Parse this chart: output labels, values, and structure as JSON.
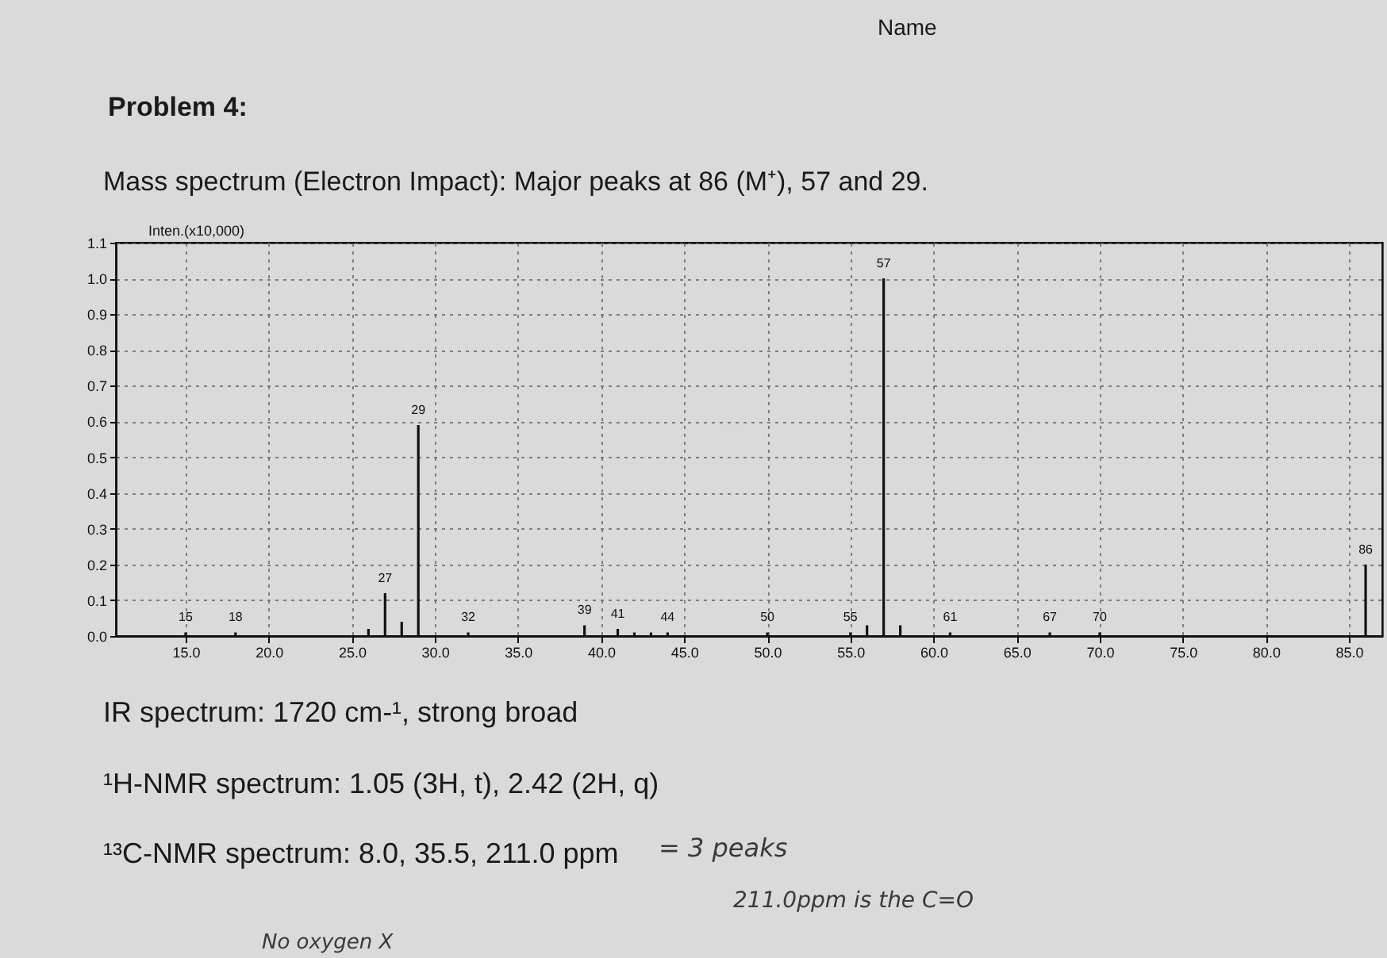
{
  "chart_data": {
    "type": "bar",
    "title": "Mass spectrum (Electron Impact): Major peaks at 86 (M⁺), 57 and 29.",
    "ylabel": "Inten.(x10,000)",
    "x": [
      15,
      18,
      26,
      27,
      28,
      29,
      32,
      39,
      41,
      42,
      43,
      44,
      50,
      55,
      56,
      57,
      58,
      61,
      67,
      70,
      86
    ],
    "values": [
      0.01,
      0.01,
      0.02,
      0.12,
      0.04,
      0.59,
      0.01,
      0.03,
      0.02,
      0.01,
      0.01,
      0.01,
      0.01,
      0.01,
      0.03,
      1.0,
      0.03,
      0.01,
      0.01,
      0.01,
      0.2
    ],
    "color": "#111111",
    "xlim": [
      10.8,
      87
    ],
    "xticks": [
      {
        "value": 15,
        "label": "15.0"
      },
      {
        "value": 20,
        "label": "20.0"
      },
      {
        "value": 25,
        "label": "25.0"
      },
      {
        "value": 30,
        "label": "30.0"
      },
      {
        "value": 35,
        "label": "35.0"
      },
      {
        "value": 40,
        "label": "40.0"
      },
      {
        "value": 45,
        "label": "45.0"
      },
      {
        "value": 50,
        "label": "50.0"
      },
      {
        "value": 55,
        "label": "55.0"
      },
      {
        "value": 60,
        "label": "60.0"
      },
      {
        "value": 65,
        "label": "65.0"
      },
      {
        "value": 70,
        "label": "70.0"
      },
      {
        "value": 75,
        "label": "75.0"
      },
      {
        "value": 80,
        "label": "80.0"
      },
      {
        "value": 85,
        "label": "85.0"
      }
    ],
    "ylim": [
      0,
      1.1
    ],
    "yticks": [
      {
        "value": 0,
        "label": "0.0"
      },
      0.1,
      0.2,
      0.3,
      0.4,
      0.5,
      0.6,
      0.7,
      0.8,
      0.9,
      {
        "value": 1,
        "label": "1.0"
      },
      1.1
    ],
    "grid": true,
    "annotations": [
      "Name",
      "Problem 4:",
      "IR spectrum: 1720 cm-¹, strong broad",
      "¹H-NMR spectrum: 1.05 (3H, t), 2.42 (2H, q)",
      "¹³C-NMR spectrum: 8.0, 35.5, 211.0 ppm",
      "= 3 peaks",
      "211.0ppm is the C=O",
      "No oxygen X",
      {
        "text": "15",
        "x": 15,
        "y": 0.01
      },
      {
        "text": "18",
        "x": 18,
        "y": 0.01
      },
      {
        "text": "27",
        "x": 27,
        "y": 0.12
      },
      {
        "text": "29",
        "x": 29,
        "y": 0.59
      },
      {
        "text": "32",
        "x": 32,
        "y": 0.01
      },
      {
        "text": "39",
        "x": 39,
        "y": 0.03
      },
      {
        "text": "41",
        "x": 41,
        "y": 0.02
      },
      {
        "text": "44",
        "x": 44,
        "y": 0.01
      },
      {
        "text": "50",
        "x": 50,
        "y": 0.01
      },
      {
        "text": "55",
        "x": 55,
        "y": 0.01
      },
      {
        "text": "57",
        "x": 57,
        "y": 1.0
      },
      {
        "text": "61",
        "x": 61,
        "y": 0.01
      },
      {
        "text": "67",
        "x": 67,
        "y": 0.01
      },
      {
        "text": "70",
        "x": 70,
        "y": 0.01
      },
      {
        "text": "86",
        "x": 86,
        "y": 0.2
      }
    ]
  }
}
